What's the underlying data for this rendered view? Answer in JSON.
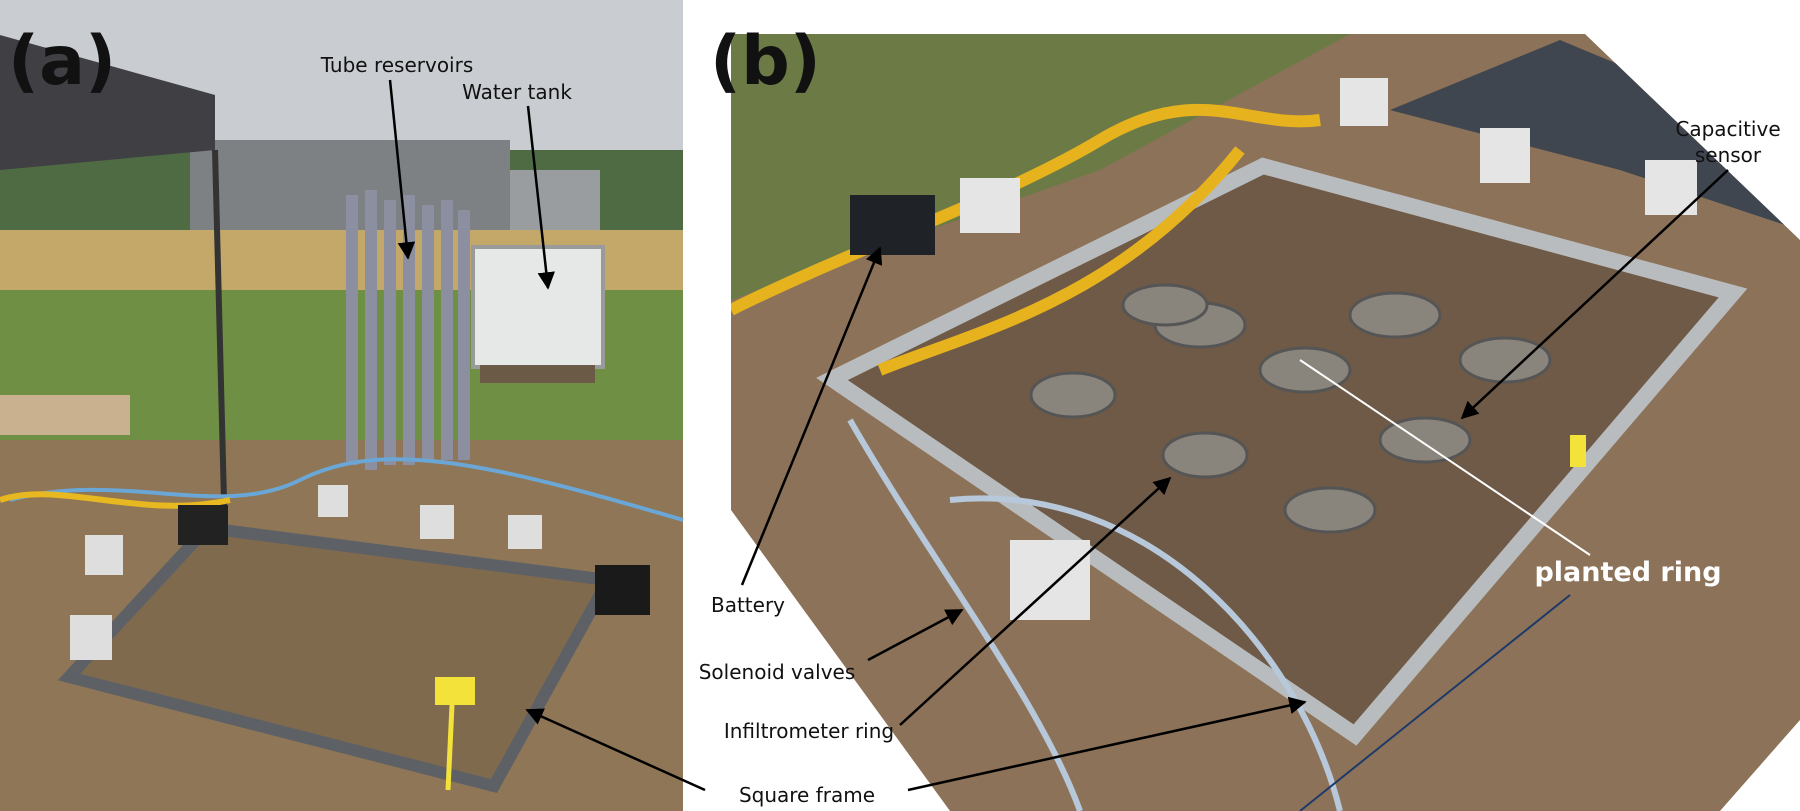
{
  "panels": [
    {
      "label": "(a)",
      "annotations": [
        "Tube reservoirs",
        "Water tank"
      ]
    },
    {
      "label": "(b)",
      "annotations": [
        "Battery",
        "Solenoid valves",
        "Infiltrometer ring",
        "Square frame",
        "planted ring"
      ],
      "multiline_annotation": [
        "Capacitive",
        "sensor"
      ]
    }
  ]
}
